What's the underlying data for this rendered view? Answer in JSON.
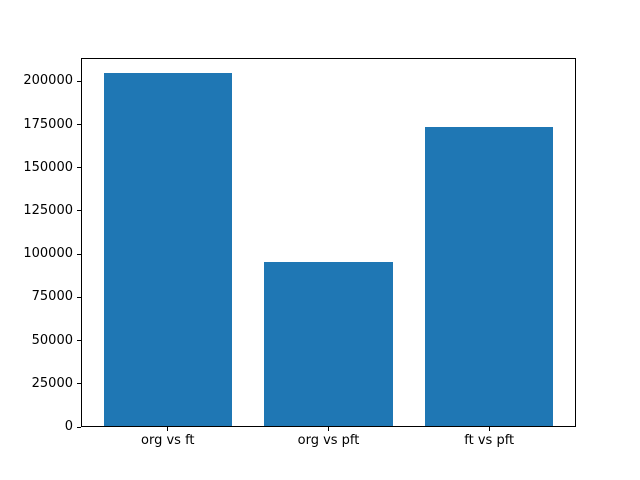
{
  "chart_data": {
    "type": "bar",
    "title": "",
    "xlabel": "",
    "ylabel": "",
    "categories": [
      "org vs ft",
      "org vs pft",
      "ft vs pft"
    ],
    "values": [
      204000,
      95000,
      173000
    ],
    "ylim": [
      0,
      213500
    ],
    "yticks": [
      0,
      25000,
      50000,
      75000,
      100000,
      125000,
      150000,
      175000,
      200000
    ],
    "ytick_labels": [
      "0",
      "25000",
      "50000",
      "75000",
      "100000",
      "125000",
      "150000",
      "175000",
      "200000"
    ],
    "grid": false,
    "legend": null,
    "bar_color": "#1f77b4"
  },
  "colors": {
    "background": "#ffffff",
    "axis": "#000000",
    "text": "#000000",
    "bar": "#1f77b4"
  }
}
